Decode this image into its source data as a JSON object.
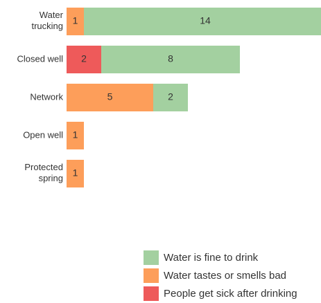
{
  "chart_data": {
    "type": "stacked-bar-horizontal",
    "categories": [
      "Water trucking",
      "Closed well",
      "Network",
      "Open well",
      "Protected spring"
    ],
    "series": [
      {
        "name": "People get sick after drinking",
        "color": "#ee5a5a",
        "values": [
          null,
          2,
          null,
          null,
          null
        ]
      },
      {
        "name": "Water tastes or smells bad",
        "color": "#fd9e5a",
        "values": [
          1,
          null,
          5,
          1,
          1
        ]
      },
      {
        "name": "Water is fine to drink",
        "color": "#a3d0a0",
        "values": [
          14,
          8,
          2,
          null,
          null
        ]
      }
    ]
  }
}
